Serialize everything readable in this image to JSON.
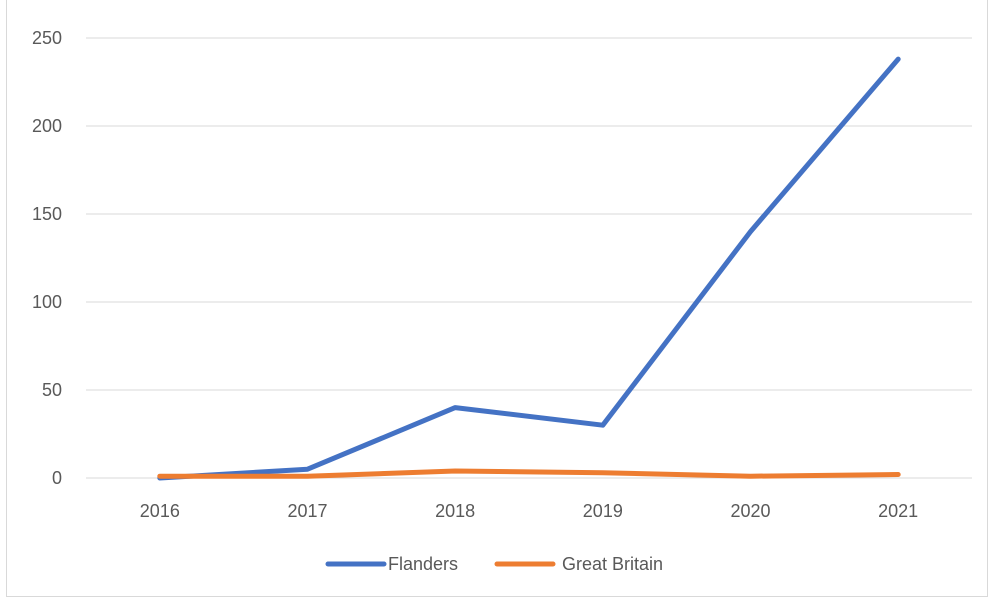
{
  "chart_data": {
    "type": "line",
    "title": "",
    "xlabel": "",
    "ylabel": "",
    "categories": [
      "2016",
      "2017",
      "2018",
      "2019",
      "2020",
      "2021"
    ],
    "ylim": [
      0,
      250
    ],
    "yticks": [
      0,
      50,
      100,
      150,
      200,
      250
    ],
    "grid": true,
    "legend_position": "bottom",
    "series": [
      {
        "name": "Flanders",
        "color": "#4472c4",
        "values": [
          0,
          5,
          40,
          30,
          140,
          238
        ]
      },
      {
        "name": "Great Britain",
        "color": "#ed7d31",
        "values": [
          1,
          1,
          4,
          3,
          1,
          2
        ]
      }
    ]
  }
}
